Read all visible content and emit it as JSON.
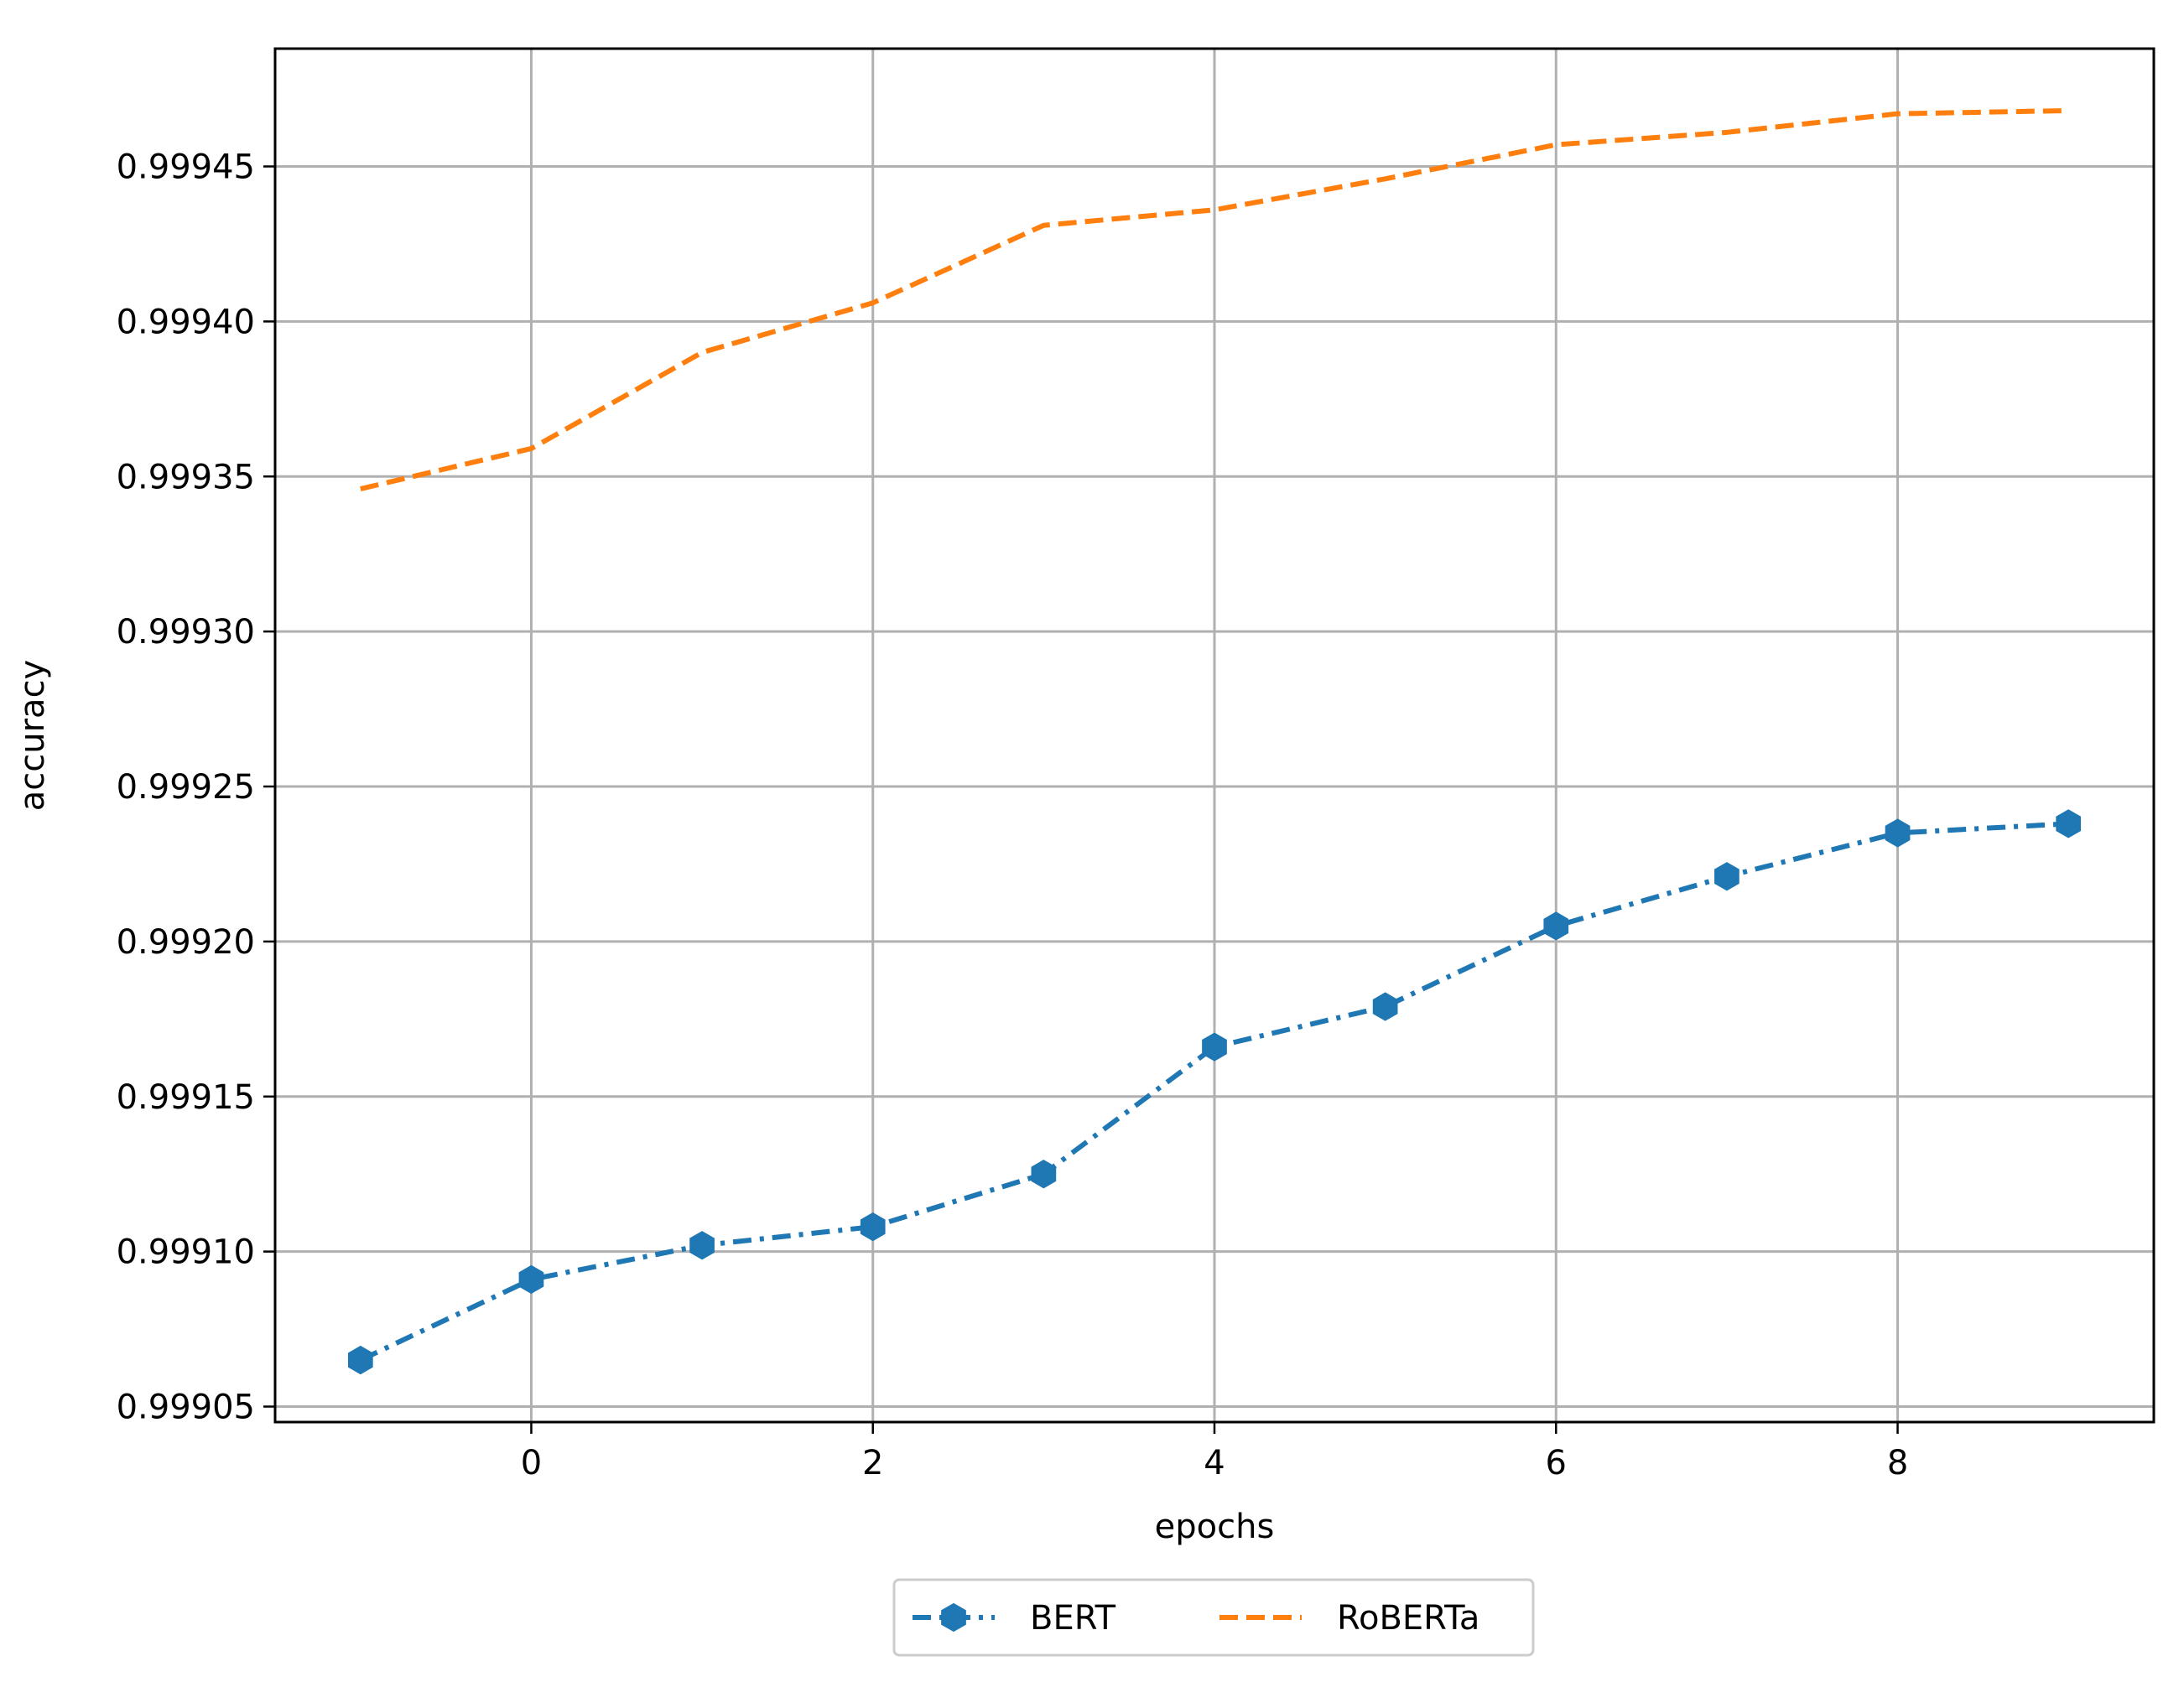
{
  "chart_data": {
    "type": "line",
    "title": "",
    "xlabel": "epochs",
    "ylabel": "accuracy",
    "xlim": [
      -1.5,
      9.5
    ],
    "ylim": [
      0.999045,
      0.999488
    ],
    "grid": true,
    "legend_position": "bottom-center, below axes",
    "x_ticks": [
      0,
      2,
      4,
      6,
      8
    ],
    "x_tick_labels": [
      "0",
      "2",
      "4",
      "6",
      "8"
    ],
    "y_ticks": [
      0.99905,
      0.9991,
      0.99915,
      0.9992,
      0.99925,
      0.9993,
      0.99935,
      0.9994,
      0.99945
    ],
    "y_tick_labels": [
      "0.99905",
      "0.99910",
      "0.99915",
      "0.99920",
      "0.99925",
      "0.99930",
      "0.99935",
      "0.99940",
      "0.99945"
    ],
    "series": [
      {
        "name": "BERT",
        "color": "#1f77b4",
        "line_style": "dash-dot",
        "marker": "hexagon",
        "x": [
          -1,
          0,
          1,
          2,
          3,
          4,
          5,
          6,
          7,
          8,
          9
        ],
        "y": [
          0.999065,
          0.999091,
          0.999102,
          0.999108,
          0.999125,
          0.999166,
          0.999179,
          0.999205,
          0.999221,
          0.999235,
          0.999238
        ]
      },
      {
        "name": "RoBERTa",
        "color": "#ff7f0e",
        "line_style": "dashed",
        "marker": "none",
        "x": [
          -1,
          0,
          1,
          2,
          3,
          4,
          5,
          6,
          7,
          8,
          9
        ],
        "y": [
          0.999346,
          0.999359,
          0.99939,
          0.999406,
          0.999431,
          0.999436,
          0.999446,
          0.999457,
          0.999461,
          0.999467,
          0.999468
        ]
      }
    ]
  }
}
